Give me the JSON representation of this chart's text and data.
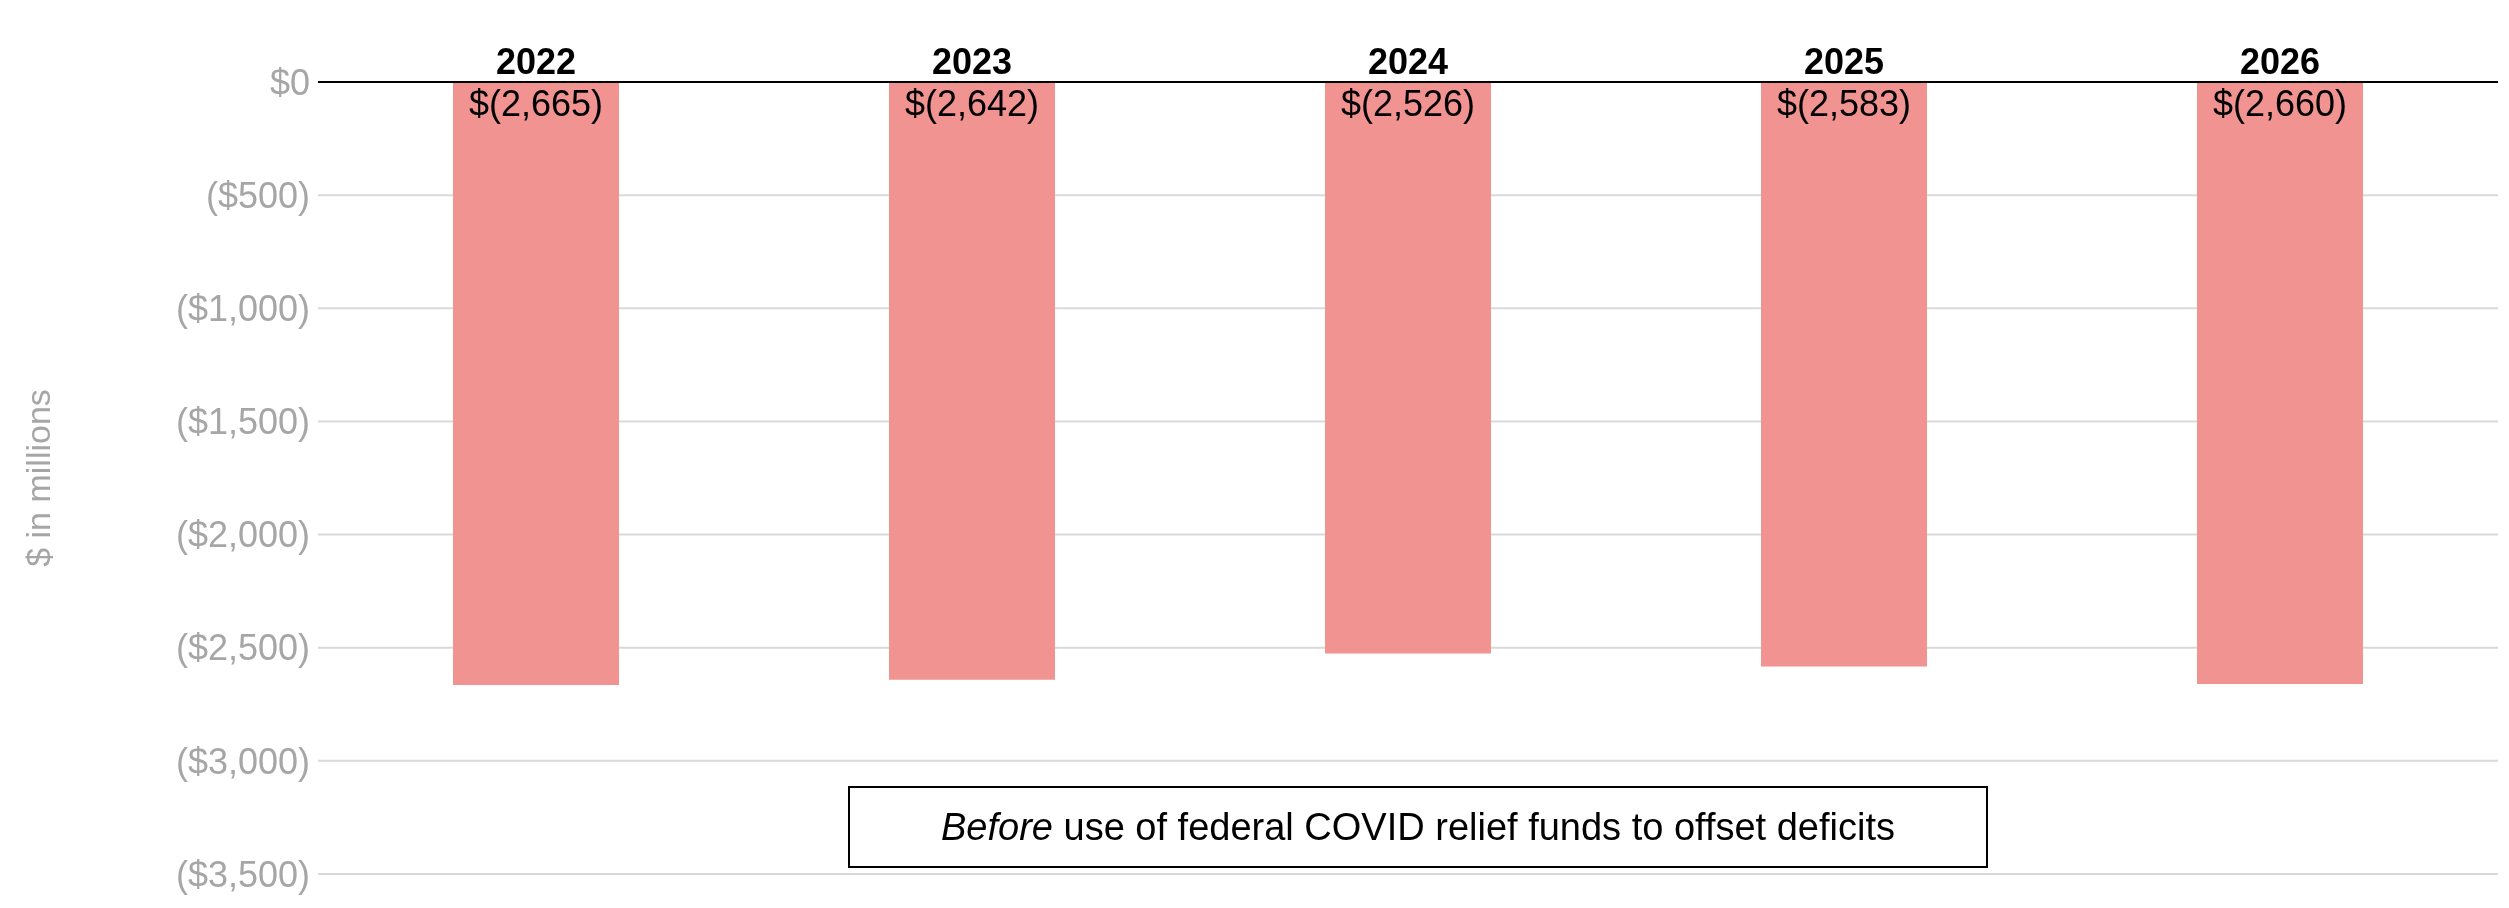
{
  "chart_data": {
    "type": "bar",
    "ylabel": "$ in millions",
    "categories": [
      "2022",
      "2023",
      "2024",
      "2025",
      "2026"
    ],
    "values": [
      -2665,
      -2642,
      -2526,
      -2583,
      -2660
    ],
    "value_labels": [
      "$(2,665)",
      "$(2,642)",
      "$(2,526)",
      "$(2,583)",
      "$(2,660)"
    ],
    "color": "#f19391",
    "ylim": [
      -3500,
      0
    ],
    "yticks": [
      {
        "value": 0,
        "label": "$0"
      },
      {
        "value": -500,
        "label": "($500)"
      },
      {
        "value": -1000,
        "label": "($1,000)"
      },
      {
        "value": -1500,
        "label": "($1,500)"
      },
      {
        "value": -2000,
        "label": "($2,000)"
      },
      {
        "value": -2500,
        "label": "($2,500)"
      },
      {
        "value": -3000,
        "label": "($3,000)"
      },
      {
        "value": -3500,
        "label": "($3,500)"
      }
    ],
    "grid": "y",
    "annotations": [
      "Before use of federal COVID relief funds to offset deficits"
    ]
  }
}
